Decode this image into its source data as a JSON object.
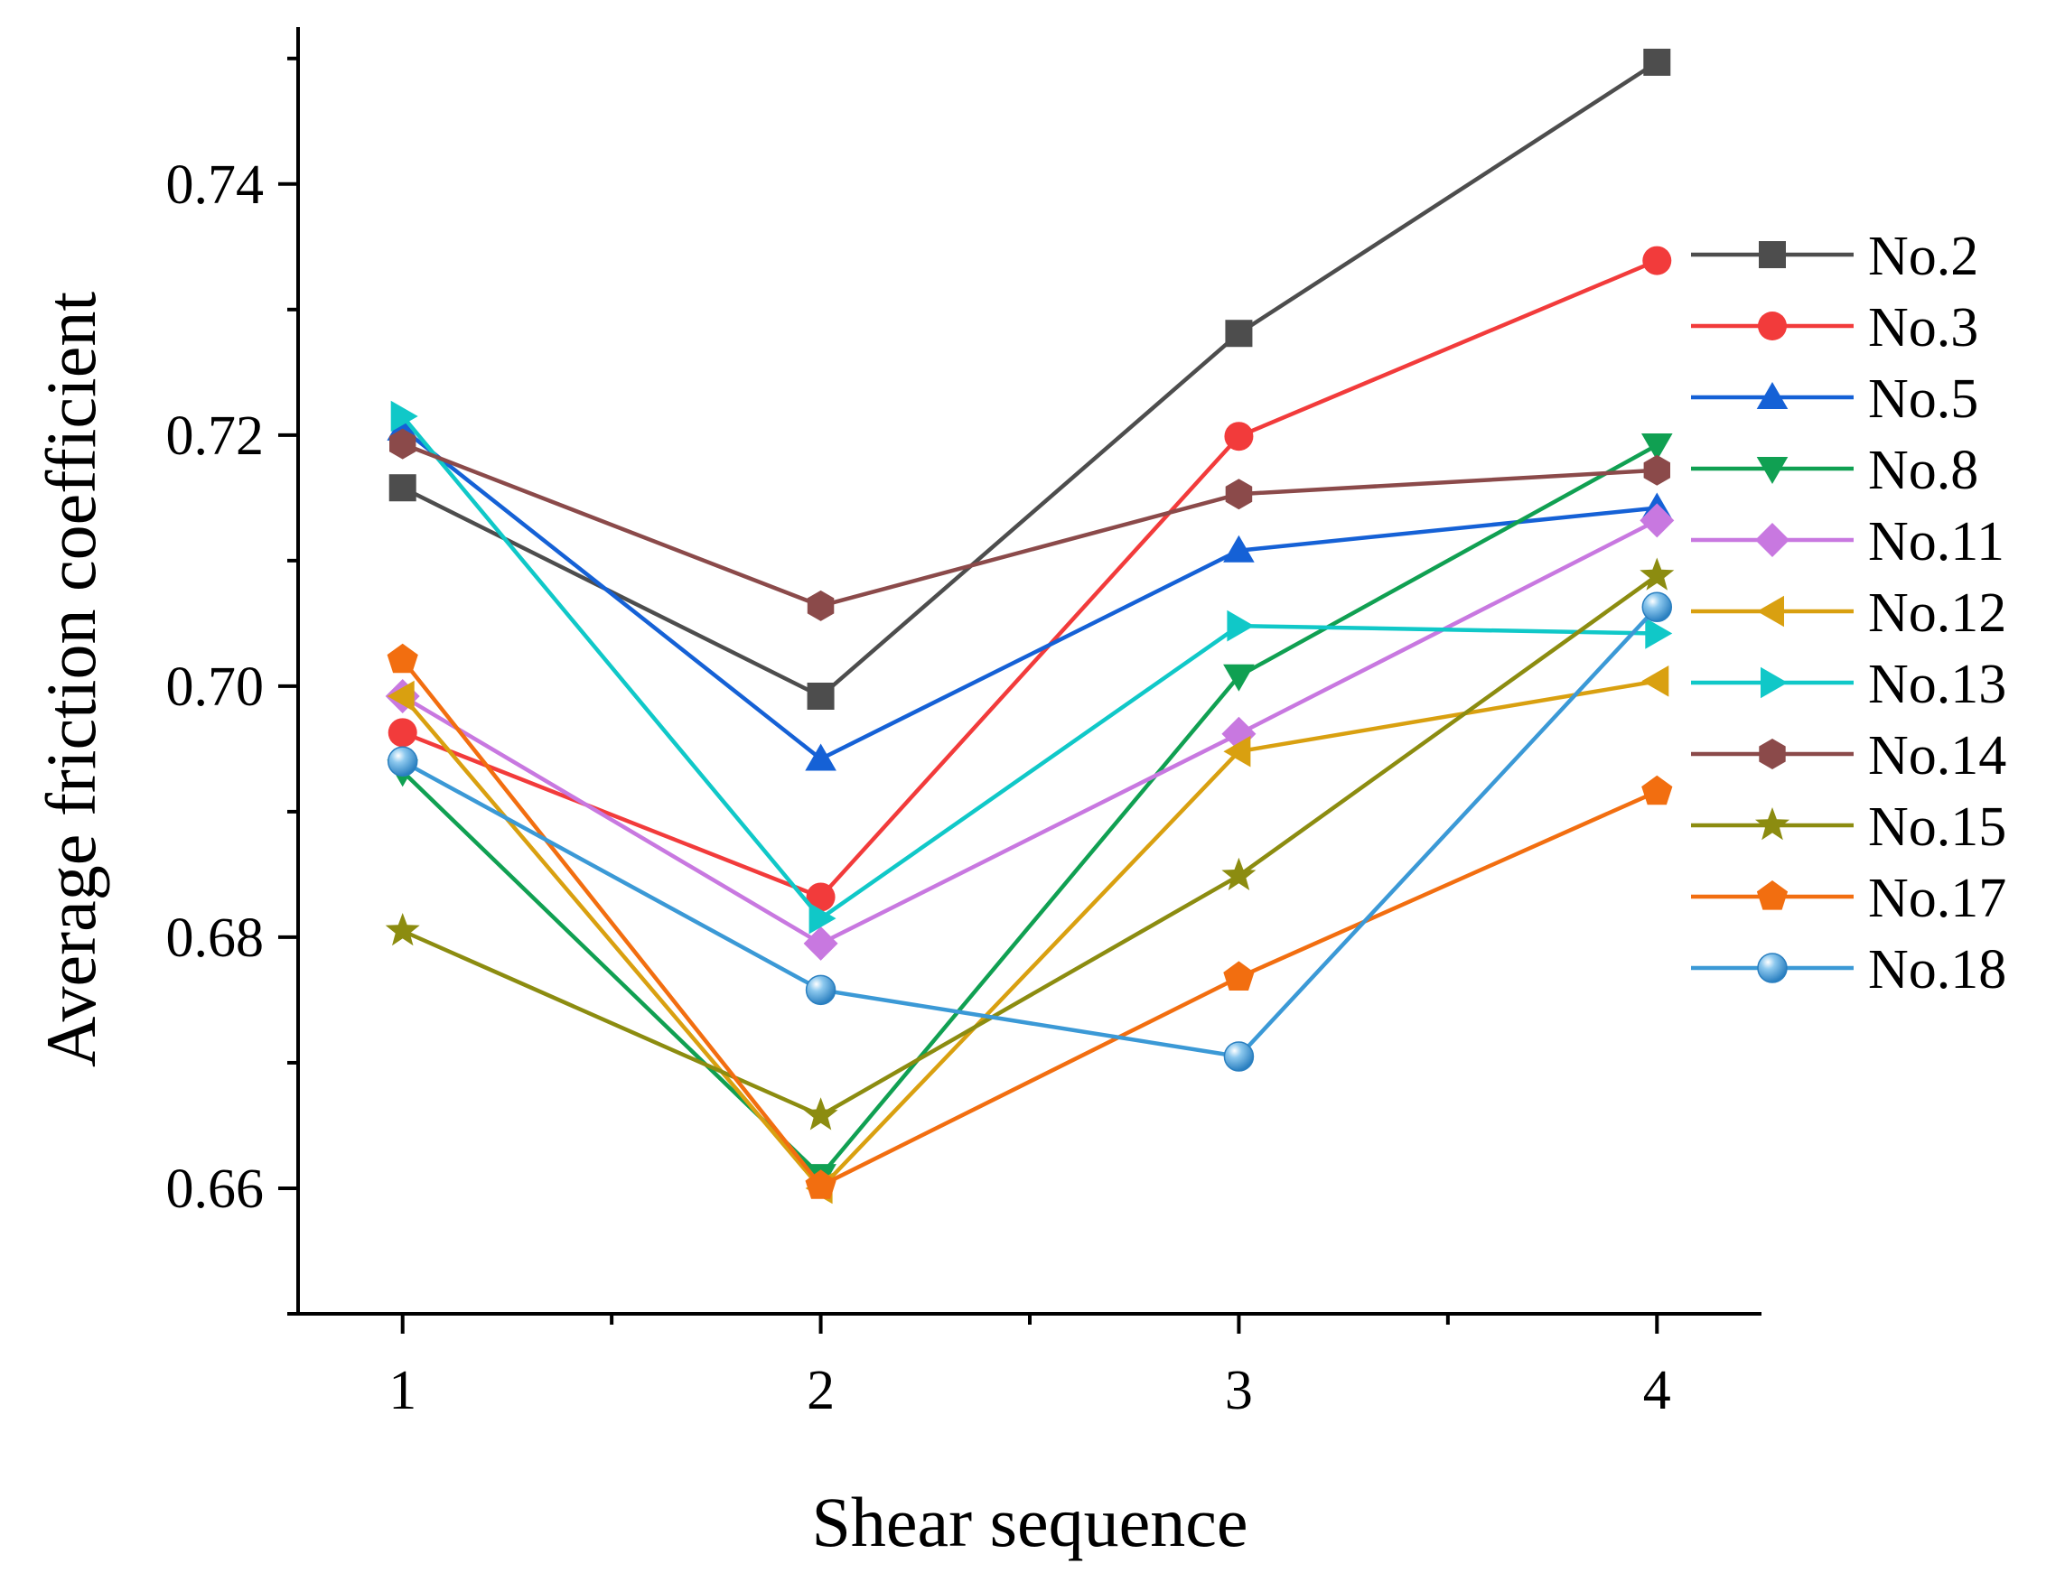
{
  "chart_data": {
    "type": "line",
    "title": "",
    "xlabel": "Shear sequence",
    "ylabel": "Average friction coefficient",
    "x": [
      1,
      2,
      3,
      4
    ],
    "x_tick_labels": [
      "1",
      "2",
      "3",
      "4"
    ],
    "xlim": [
      0.75,
      4.25
    ],
    "ylim": [
      0.65,
      0.7525
    ],
    "y_ticks": [
      0.66,
      0.68,
      0.7,
      0.72,
      0.74
    ],
    "y_tick_labels": [
      "0.66",
      "0.68",
      "0.70",
      "0.72",
      "0.74"
    ],
    "grid": false,
    "legend_position": "right",
    "series": [
      {
        "name": "No.2",
        "color": "#4d4d4d",
        "marker": "square",
        "values": [
          0.7158,
          0.6992,
          0.7281,
          0.7497
        ]
      },
      {
        "name": "No.3",
        "color": "#f23b3b",
        "marker": "circle",
        "values": [
          0.6963,
          0.6832,
          0.7199,
          0.7339
        ]
      },
      {
        "name": "No.5",
        "color": "#1561d6",
        "marker": "triangle-up",
        "values": [
          0.7205,
          0.6942,
          0.7108,
          0.7142
        ]
      },
      {
        "name": "No.8",
        "color": "#10a052",
        "marker": "triangle-down",
        "values": [
          0.6932,
          0.661,
          0.7008,
          0.7192
        ]
      },
      {
        "name": "No.11",
        "color": "#c878e0",
        "marker": "diamond",
        "values": [
          0.6992,
          0.6795,
          0.6962,
          0.7132
        ]
      },
      {
        "name": "No.12",
        "color": "#d9a010",
        "marker": "triangle-left",
        "values": [
          0.6992,
          0.66,
          0.6948,
          0.7004
        ]
      },
      {
        "name": "No.13",
        "color": "#10c8c8",
        "marker": "triangle-right",
        "values": [
          0.7215,
          0.6815,
          0.7048,
          0.7042
        ]
      },
      {
        "name": "No.14",
        "color": "#8b4a4a",
        "marker": "hexagon",
        "values": [
          0.7193,
          0.7064,
          0.7153,
          0.7172
        ]
      },
      {
        "name": "No.15",
        "color": "#8c8c10",
        "marker": "star",
        "values": [
          0.6805,
          0.6658,
          0.6849,
          0.7088
        ]
      },
      {
        "name": "No.17",
        "color": "#f26e10",
        "marker": "pentagon",
        "values": [
          0.7021,
          0.6602,
          0.6768,
          0.6916
        ]
      },
      {
        "name": "No.18",
        "color": "#3b99d6",
        "marker": "sphere",
        "values": [
          0.694,
          0.6758,
          0.6705,
          0.7063
        ]
      }
    ]
  }
}
